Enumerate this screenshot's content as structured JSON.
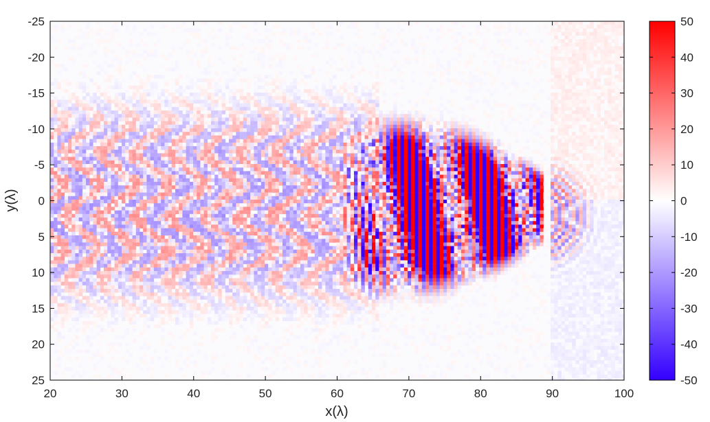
{
  "chart_data": {
    "type": "heatmap",
    "title": "",
    "xlabel": "x(λ)",
    "ylabel": "y(λ)",
    "xlim": [
      20,
      100
    ],
    "ylim": [
      -25,
      25
    ],
    "y_axis_reversed": true,
    "x_ticks": [
      "20",
      "30",
      "40",
      "50",
      "60",
      "70",
      "80",
      "90",
      "100"
    ],
    "y_ticks": [
      "-25",
      "-20",
      "-15",
      "-10",
      "-5",
      "0",
      "5",
      "10",
      "15",
      "20",
      "25"
    ],
    "colorbar": {
      "range": [
        -50,
        50
      ],
      "ticks": [
        "50",
        "40",
        "30",
        "20",
        "10",
        "0",
        "-10",
        "-20",
        "-30",
        "-40",
        "-50"
      ],
      "colors": {
        "min": "#3300ff",
        "mid": "#ffffff",
        "max": "#ff0000"
      }
    },
    "features": [
      {
        "name": "oscillating field region",
        "x_range": [
          66,
          89
        ],
        "y_range": [
          -8,
          10
        ],
        "amplitude": 50
      },
      {
        "name": "weak wake region",
        "x_range": [
          20,
          66
        ],
        "y_range": [
          -13,
          14
        ],
        "amplitude": 15
      },
      {
        "name": "reflected wave region",
        "x_range": [
          89.5,
          100
        ],
        "y_range": [
          -25,
          25
        ],
        "amplitude": 10
      }
    ],
    "grid": false,
    "legend": "colorbar-right"
  }
}
